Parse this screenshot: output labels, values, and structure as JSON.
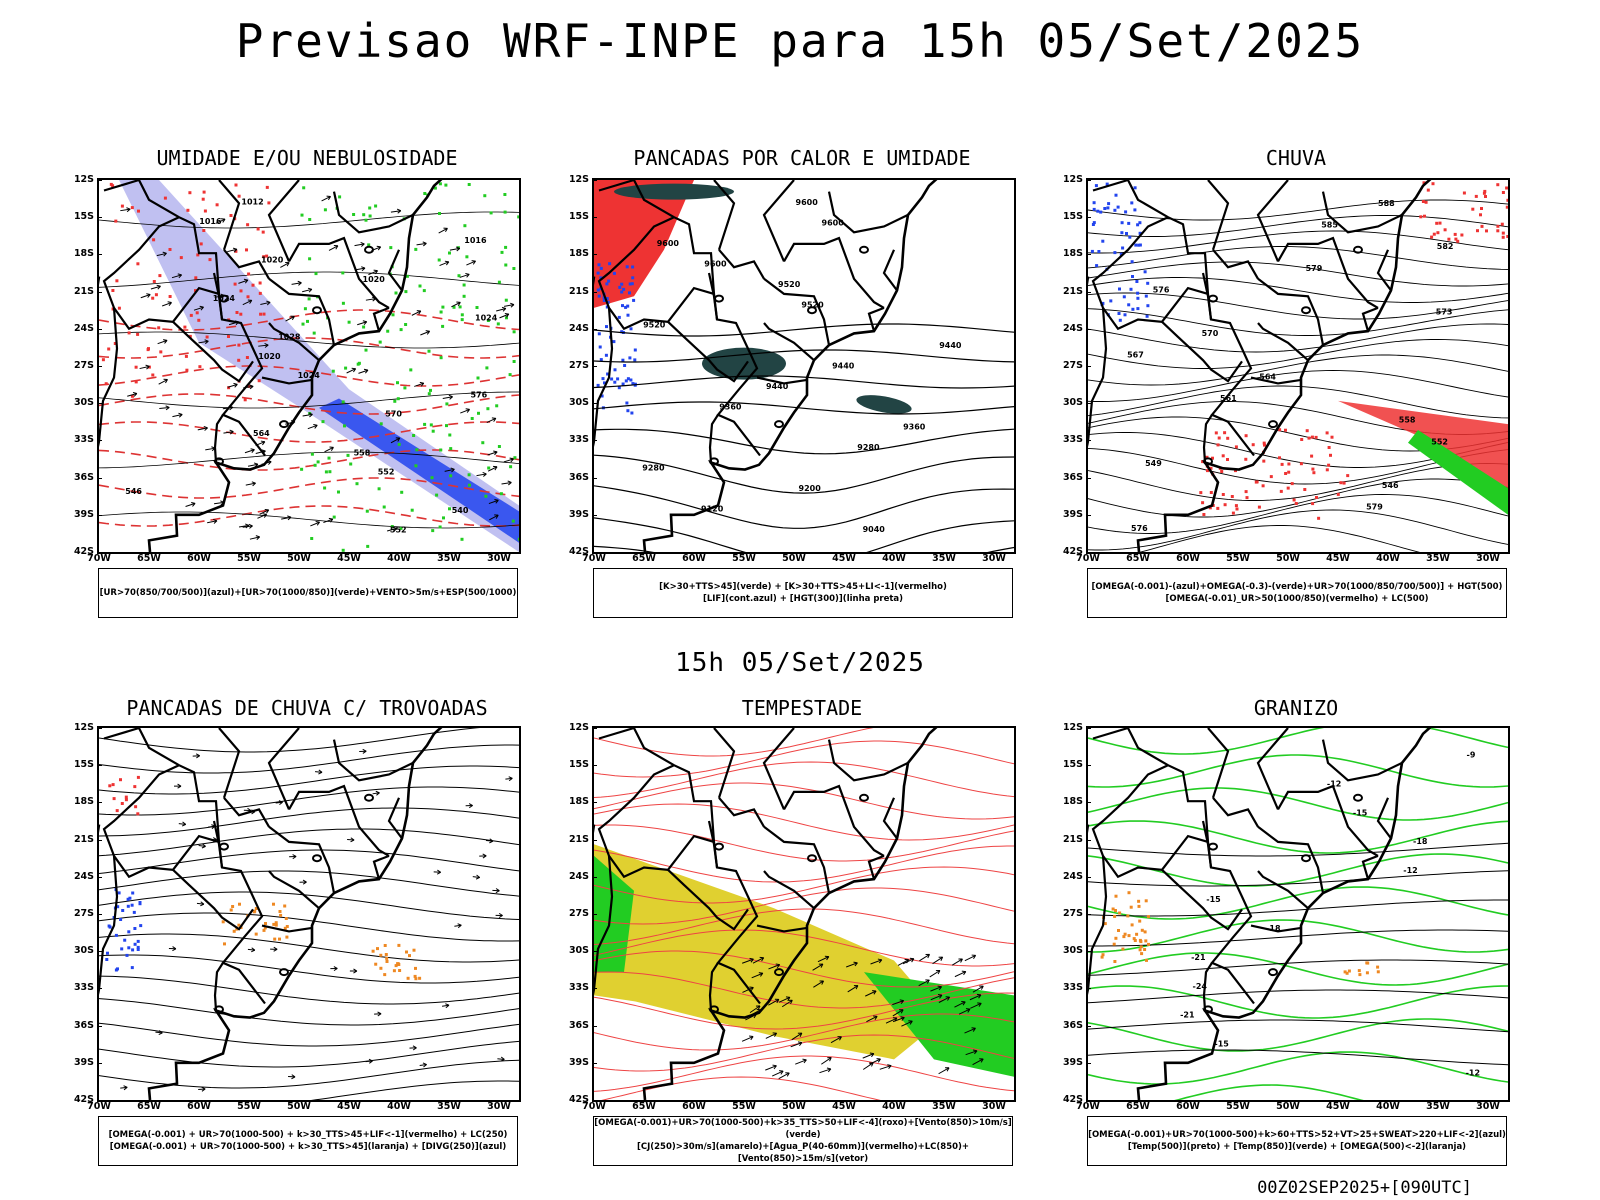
{
  "page_title": "Previsao WRF-INPE  para 15h 05/Set/2025",
  "mid_title": "15h 05/Set/2025",
  "footer": "00Z02SEP2025+[090UTC]",
  "colors": {
    "green": "#22cc22",
    "red": "#ee3333",
    "blue": "#2244ee",
    "lavender": "#b0b0ee",
    "yellow": "#e0d030",
    "orange": "#ee8822",
    "darkteal": "#224444"
  },
  "chart_data": [
    {
      "type": "map",
      "title": "UMIDADE E/OU NEBULOSIDADE",
      "legend": [
        "[UR>70(850/700/500)](azul)+[UR>70(1000/850)](verde)+VENTO>5m/s+ESP(500/1000)"
      ],
      "lat_ticks": [
        "12S",
        "15S",
        "18S",
        "21S",
        "24S",
        "27S",
        "30S",
        "33S",
        "36S",
        "39S",
        "42S"
      ],
      "lon_ticks": [
        "70W",
        "65W",
        "60W",
        "55W",
        "50W",
        "45W",
        "40W",
        "35W",
        "30W"
      ],
      "contour_labels": [
        "1012",
        "1016",
        "1016",
        "1020",
        "1020",
        "1024",
        "1024",
        "1028",
        "1020",
        "1024",
        "576",
        "570",
        "564",
        "558",
        "552",
        "546",
        "540",
        "552"
      ]
    },
    {
      "type": "map",
      "title": "PANCADAS POR CALOR E UMIDADE",
      "legend": [
        "[K>30+TTS>45](verde) + [K>30+TTS>45+LI<-1](vermelho)",
        "[LIF](cont.azul) + [HGT(300)](linha preta)"
      ],
      "lat_ticks": [
        "12S",
        "15S",
        "18S",
        "21S",
        "24S",
        "27S",
        "30S",
        "33S",
        "36S",
        "39S",
        "42S"
      ],
      "lon_ticks": [
        "70W",
        "65W",
        "60W",
        "55W",
        "50W",
        "45W",
        "40W",
        "35W",
        "30W"
      ],
      "contour_labels": [
        "9600",
        "9600",
        "9600",
        "9600",
        "9520",
        "9520",
        "9520",
        "9440",
        "9440",
        "9440",
        "9360",
        "9360",
        "9280",
        "9280",
        "9200",
        "9120",
        "9040"
      ]
    },
    {
      "type": "map",
      "title": "CHUVA",
      "legend": [
        "[OMEGA(-0.001)-(azul)+OMEGA(-0.3)-(verde)+UR>70(1000/850/700/500)] + HGT(500)",
        "[OMEGA(-0.01)_UR>50(1000/850)(vermelho) + LC(500)"
      ],
      "lat_ticks": [
        "12S",
        "15S",
        "18S",
        "21S",
        "24S",
        "27S",
        "30S",
        "33S",
        "36S",
        "39S",
        "42S"
      ],
      "lon_ticks": [
        "70W",
        "65W",
        "60W",
        "55W",
        "50W",
        "45W",
        "40W",
        "35W",
        "30W"
      ],
      "contour_labels": [
        "588",
        "585",
        "582",
        "579",
        "576",
        "573",
        "570",
        "567",
        "564",
        "561",
        "558",
        "552",
        "549",
        "546",
        "579",
        "576"
      ]
    },
    {
      "type": "map",
      "title": "PANCADAS DE CHUVA C/ TROVOADAS",
      "legend": [
        "[OMEGA(-0.001) + UR>70(1000-500) + k>30_TTS>45+LIF<-1](vermelho) + LC(250)",
        "[OMEGA(-0.001) + UR>70(1000-500) + k>30_TTS>45](laranja) + [DIVG(250)](azul)"
      ],
      "lat_ticks": [
        "12S",
        "15S",
        "18S",
        "21S",
        "24S",
        "27S",
        "30S",
        "33S",
        "36S",
        "39S",
        "42S"
      ],
      "lon_ticks": [
        "70W",
        "65W",
        "60W",
        "55W",
        "50W",
        "45W",
        "40W",
        "35W",
        "30W"
      ]
    },
    {
      "type": "map",
      "title": "TEMPESTADE",
      "legend": [
        "[OMEGA(-0.001)+UR>70(1000-500)+k>35_TTS>50+LIF<-4](roxo)+[Vento(850)>10m/s](verde)",
        "[CJ(250)>30m/s](amarelo)+[Agua_P(40-60mm)](vermelho)+LC(850)+[Vento(850)>15m/s](vetor)"
      ],
      "lat_ticks": [
        "12S",
        "15S",
        "18S",
        "21S",
        "24S",
        "27S",
        "30S",
        "33S",
        "36S",
        "39S",
        "42S"
      ],
      "lon_ticks": [
        "70W",
        "65W",
        "60W",
        "55W",
        "50W",
        "45W",
        "40W",
        "35W",
        "30W"
      ]
    },
    {
      "type": "map",
      "title": "GRANIZO",
      "legend": [
        "[OMEGA(-0.001)+UR>70(1000-500)+k>60+TTS>52+VT>25+SWEAT>220+LIF<-2](azul)",
        "[Temp(500)](preto) + [Temp(850)](verde) + [OMEGA(500)<-2](laranja)"
      ],
      "lat_ticks": [
        "12S",
        "15S",
        "18S",
        "21S",
        "24S",
        "27S",
        "30S",
        "33S",
        "36S",
        "39S",
        "42S"
      ],
      "lon_ticks": [
        "70W",
        "65W",
        "60W",
        "55W",
        "50W",
        "45W",
        "40W",
        "35W",
        "30W"
      ],
      "contour_labels": [
        "-9",
        "-12",
        "-15",
        "-18",
        "-12",
        "-15",
        "-18",
        "-21",
        "-24",
        "-21",
        "-15",
        "-12"
      ]
    }
  ]
}
